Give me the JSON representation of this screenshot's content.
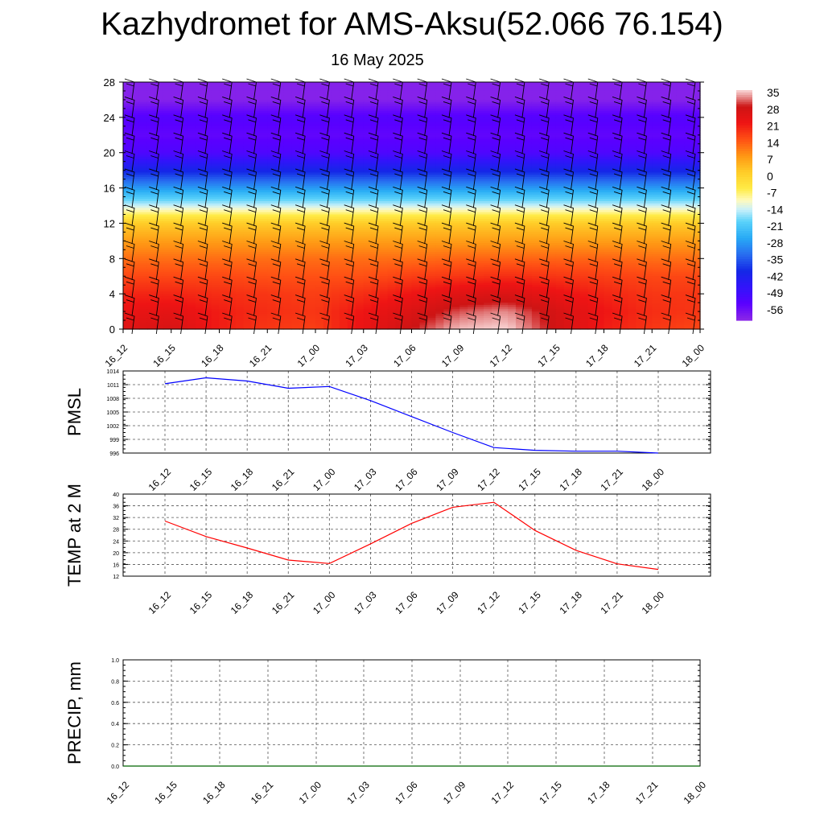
{
  "title": "Kazhydromet for AMS-Aksu(52.066 76.154)",
  "subtitle": "16 May 2025",
  "chart_data": [
    {
      "type": "heatmap",
      "x_labels": [
        "16_12",
        "16_15",
        "16_18",
        "16_21",
        "17_00",
        "17_03",
        "17_06",
        "17_09",
        "17_12",
        "17_15",
        "17_18",
        "17_21",
        "18_00"
      ],
      "y_ticks": [
        "0",
        "4",
        "8",
        "12",
        "16",
        "20",
        "24",
        "28"
      ],
      "ylim": [
        0,
        28
      ],
      "colorbar": {
        "labels": [
          "35",
          "28",
          "21",
          "14",
          "7",
          "0",
          "-7",
          "-14",
          "-21",
          "-28",
          "-35",
          "-42",
          "-49",
          "-56"
        ],
        "range": [
          -63,
          35
        ]
      },
      "levels": [
        0,
        2,
        4,
        6,
        8,
        10,
        12,
        13,
        14,
        16,
        18,
        20,
        22,
        24,
        26,
        28
      ],
      "level_temps": [
        [
          24,
          26,
          20,
          17,
          16,
          22,
          28,
          34,
          35,
          27,
          20,
          17,
          15
        ],
        [
          22,
          23,
          20,
          18,
          17,
          21,
          25,
          30,
          32,
          26,
          21,
          18,
          17
        ],
        [
          19,
          19,
          18,
          17,
          16,
          18,
          21,
          24,
          25,
          22,
          19,
          17,
          17
        ],
        [
          15,
          15,
          15,
          14,
          14,
          14,
          16,
          17,
          18,
          17,
          16,
          15,
          15
        ],
        [
          11,
          11,
          11,
          11,
          11,
          11,
          11,
          12,
          12,
          12,
          12,
          11,
          11
        ],
        [
          6,
          6,
          6,
          6,
          6,
          6,
          6,
          6,
          6,
          6,
          6,
          6,
          6
        ],
        [
          0,
          0,
          0,
          0,
          0,
          0,
          0,
          0,
          0,
          0,
          0,
          0,
          0
        ],
        [
          -8,
          -8,
          -8,
          -8,
          -8,
          -8,
          -8,
          -8,
          -8,
          -8,
          -8,
          -8,
          -8
        ],
        [
          -16,
          -16,
          -16,
          -16,
          -16,
          -16,
          -16,
          -16,
          -16,
          -16,
          -16,
          -16,
          -16
        ],
        [
          -30,
          -30,
          -30,
          -30,
          -30,
          -30,
          -30,
          -30,
          -30,
          -30,
          -30,
          -30,
          -30
        ],
        [
          -43,
          -43,
          -43,
          -43,
          -43,
          -43,
          -43,
          -43,
          -43,
          -43,
          -43,
          -43,
          -43
        ],
        [
          -54,
          -54,
          -54,
          -54,
          -54,
          -54,
          -54,
          -54,
          -54,
          -54,
          -54,
          -54,
          -54
        ],
        [
          -57,
          -57,
          -57,
          -57,
          -57,
          -57,
          -57,
          -57,
          -57,
          -57,
          -57,
          -57,
          -57
        ],
        [
          -55,
          -55,
          -55,
          -55,
          -55,
          -55,
          -55,
          -55,
          -55,
          -55,
          -55,
          -55,
          -55
        ],
        [
          -62,
          -62,
          -62,
          -62,
          -62,
          -62,
          -62,
          -62,
          -62,
          -62,
          -62,
          -62,
          -62
        ],
        [
          -62,
          -62,
          -62,
          -62,
          -62,
          -62,
          -62,
          -62,
          -62,
          -62,
          -62,
          -62,
          -62
        ]
      ],
      "wind_barbs": true
    },
    {
      "type": "line",
      "ylabel": "PMSL",
      "x": [
        "16_12",
        "16_15",
        "16_18",
        "16_21",
        "17_00",
        "17_03",
        "17_06",
        "17_09",
        "17_12",
        "17_15",
        "17_18",
        "17_21",
        "18_00"
      ],
      "y_ticks": [
        "996",
        "999",
        "1002",
        "1005",
        "1008",
        "1011",
        "1014"
      ],
      "ylim": [
        996,
        1014
      ],
      "series": [
        {
          "values": [
            1011.2,
            1012.5,
            1011.8,
            1010.2,
            1010.6,
            1007.5,
            1004.0,
            1000.5,
            997.2,
            996.6,
            996.4,
            996.4,
            996.0
          ],
          "color": "#0000ff"
        }
      ]
    },
    {
      "type": "line",
      "ylabel": "TEMP at 2 M",
      "x": [
        "16_12",
        "16_15",
        "16_18",
        "16_21",
        "17_00",
        "17_03",
        "17_06",
        "17_09",
        "17_12",
        "17_15",
        "17_18",
        "17_21",
        "18_00"
      ],
      "y_ticks": [
        "12",
        "16",
        "20",
        "24",
        "28",
        "32",
        "36",
        "40"
      ],
      "ylim": [
        12,
        40
      ],
      "series": [
        {
          "values": [
            30.8,
            25.5,
            21.6,
            17.5,
            16.3,
            23.0,
            30.0,
            35.5,
            37.2,
            27.6,
            20.8,
            16.2,
            14.3
          ],
          "color": "#ff0000"
        }
      ]
    },
    {
      "type": "line",
      "ylabel": "PRECIP, mm",
      "x": [
        "16_12",
        "16_15",
        "16_18",
        "16_21",
        "17_00",
        "17_03",
        "17_06",
        "17_09",
        "17_12",
        "17_15",
        "17_18",
        "17_21",
        "18_00"
      ],
      "y_ticks": [
        "0.0",
        "0.2",
        "0.4",
        "0.6",
        "0.8",
        "1.0"
      ],
      "ylim": [
        0,
        1
      ],
      "series": [
        {
          "values": [
            0,
            0,
            0,
            0,
            0,
            0,
            0,
            0,
            0,
            0,
            0,
            0,
            0
          ],
          "color": "#006400"
        }
      ]
    }
  ]
}
